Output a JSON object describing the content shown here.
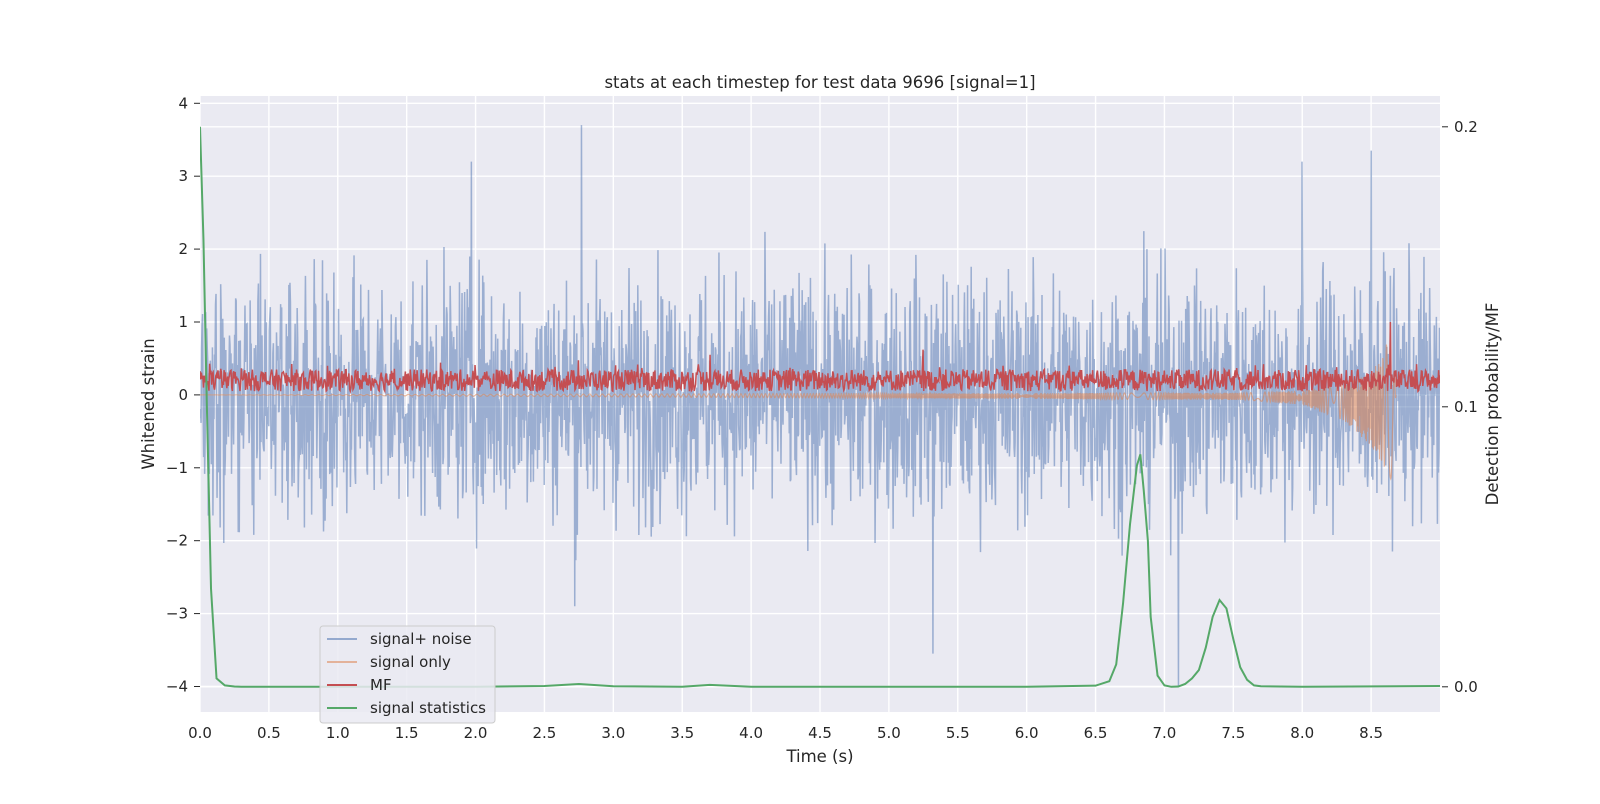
{
  "chart_data": {
    "type": "line",
    "title": "stats at each timestep for test data 9696 [signal=1]",
    "xlabel": "Time (s)",
    "ylabel_left": "Whitened strain",
    "ylabel_right": "Detection probability/MF",
    "xlim": [
      0,
      9.0
    ],
    "ylim_left": [
      -4.35,
      4.1
    ],
    "ylim_right": [
      -0.009,
      0.211
    ],
    "x_ticks": [
      "0.0",
      "0.5",
      "1.0",
      "1.5",
      "2.0",
      "2.5",
      "3.0",
      "3.5",
      "4.0",
      "4.5",
      "5.0",
      "5.5",
      "6.0",
      "6.5",
      "7.0",
      "7.5",
      "8.0",
      "8.5"
    ],
    "y_ticks_left": [
      "4",
      "3",
      "2",
      "1",
      "0",
      "−1",
      "−2",
      "−3",
      "−4"
    ],
    "y_ticks_right": [
      "0.2",
      "0.1",
      "0.0"
    ],
    "grid": true,
    "legend_position": "bottom-left",
    "colors": {
      "signal_noise": "#4c72b0",
      "signal_only": "#dd8452",
      "mf": "#c44e52",
      "stat": "#55a868",
      "plot_bg": "#eaeaf2",
      "grid": "#ffffff"
    },
    "series": [
      {
        "name": "signal+ noise",
        "axis": "left",
        "note_style": "dense noise",
        "peaks": [
          {
            "x": 2.77,
            "y": 3.7
          },
          {
            "x": 1.97,
            "y": 3.2
          },
          {
            "x": 8.5,
            "y": 3.35
          },
          {
            "x": 8.0,
            "y": 3.2
          },
          {
            "x": 5.32,
            "y": -3.55
          },
          {
            "x": 7.1,
            "y": -4.0
          },
          {
            "x": 2.72,
            "y": -2.9
          }
        ]
      },
      {
        "name": "signal only",
        "axis": "left",
        "x": [
          0.0,
          7.6,
          8.0,
          8.3,
          8.5,
          8.6,
          8.65,
          8.68
        ],
        "amplitude": [
          0.0,
          0.05,
          0.1,
          0.25,
          0.5,
          0.8,
          1.25,
          0.0
        ]
      },
      {
        "name": "MF",
        "axis": "left",
        "baseline": [
          0.05,
          0.35
        ],
        "peaks": [
          {
            "x": 8.64,
            "y": 1.0
          },
          {
            "x": 5.25,
            "y": 0.62
          },
          {
            "x": 3.7,
            "y": 0.55
          }
        ]
      },
      {
        "name": "signal statistics",
        "axis": "right",
        "x": [
          0.0,
          0.025,
          0.05,
          0.08,
          0.12,
          0.18,
          0.25,
          0.3,
          1.0,
          2.0,
          2.5,
          2.75,
          3.0,
          3.5,
          3.7,
          4.0,
          5.0,
          6.0,
          6.5,
          6.6,
          6.65,
          6.7,
          6.75,
          6.8,
          6.825,
          6.85,
          6.88,
          6.9,
          6.95,
          7.0,
          7.05,
          7.1,
          7.15,
          7.2,
          7.25,
          7.3,
          7.35,
          7.4,
          7.45,
          7.5,
          7.55,
          7.6,
          7.65,
          7.7,
          8.0,
          9.0
        ],
        "values": [
          0.2,
          0.16,
          0.1,
          0.035,
          0.003,
          0.0005,
          0.0001,
          0.0,
          0.0,
          0.0,
          0.0003,
          0.001,
          0.0002,
          0.0,
          0.0007,
          0.0,
          0.0,
          0.0,
          0.0004,
          0.002,
          0.008,
          0.03,
          0.058,
          0.079,
          0.083,
          0.07,
          0.052,
          0.025,
          0.004,
          0.0005,
          0.0,
          0.0001,
          0.001,
          0.003,
          0.006,
          0.014,
          0.025,
          0.031,
          0.028,
          0.017,
          0.007,
          0.0025,
          0.0005,
          0.0002,
          0.0,
          0.0003
        ]
      }
    ]
  }
}
